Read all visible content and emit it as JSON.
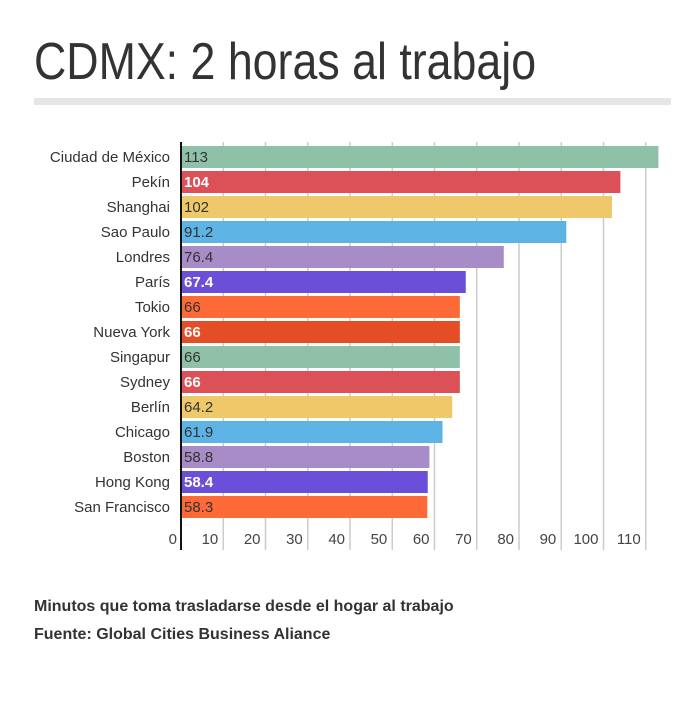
{
  "title": "CDMX: 2 horas al trabajo",
  "footer": {
    "description": "Minutos que toma trasladarse desde el hogar al trabajo",
    "source": "Fuente: Global Cities Business Aliance"
  },
  "chart_data": {
    "type": "bar",
    "orientation": "horizontal",
    "categories": [
      "Ciudad de México",
      "Pekín",
      "Shanghai",
      "Sao Paulo",
      "Londres",
      "París",
      "Tokio",
      "Nueva York",
      "Singapur",
      "Sydney",
      "Berlín",
      "Chicago",
      "Boston",
      "Hong Kong",
      "San Francisco"
    ],
    "values": [
      113,
      104,
      102,
      91.2,
      76.4,
      67.4,
      66,
      66,
      66,
      66,
      64.2,
      61.9,
      58.8,
      58.4,
      58.3
    ],
    "value_labels": [
      "113",
      "104",
      "102",
      "91.2",
      "76.4",
      "67.4",
      "66",
      "66",
      "66",
      "66",
      "64.2",
      "61.9",
      "58.8",
      "58.4",
      "58.3"
    ],
    "colors": [
      "#8fc1a9",
      "#dc5158",
      "#efc86a",
      "#5cb3e4",
      "#a88cc7",
      "#6b4fd8",
      "#fd6a37",
      "#e44d26",
      "#8fc1a9",
      "#dc5158",
      "#efc86a",
      "#5cb3e4",
      "#a88cc7",
      "#6b4fd8",
      "#fd6a37"
    ],
    "label_colors": [
      "#333333",
      "#ffffff",
      "#333333",
      "#333333",
      "#333333",
      "#ffffff",
      "#333333",
      "#ffffff",
      "#333333",
      "#ffffff",
      "#333333",
      "#333333",
      "#333333",
      "#ffffff",
      "#333333"
    ],
    "x_ticks": [
      "0",
      "10",
      "20",
      "30",
      "40",
      "50",
      "60",
      "70",
      "80",
      "90",
      "100",
      "110"
    ],
    "xlim": [
      0,
      113
    ],
    "grid": true,
    "xlabel": "",
    "ylabel": ""
  }
}
